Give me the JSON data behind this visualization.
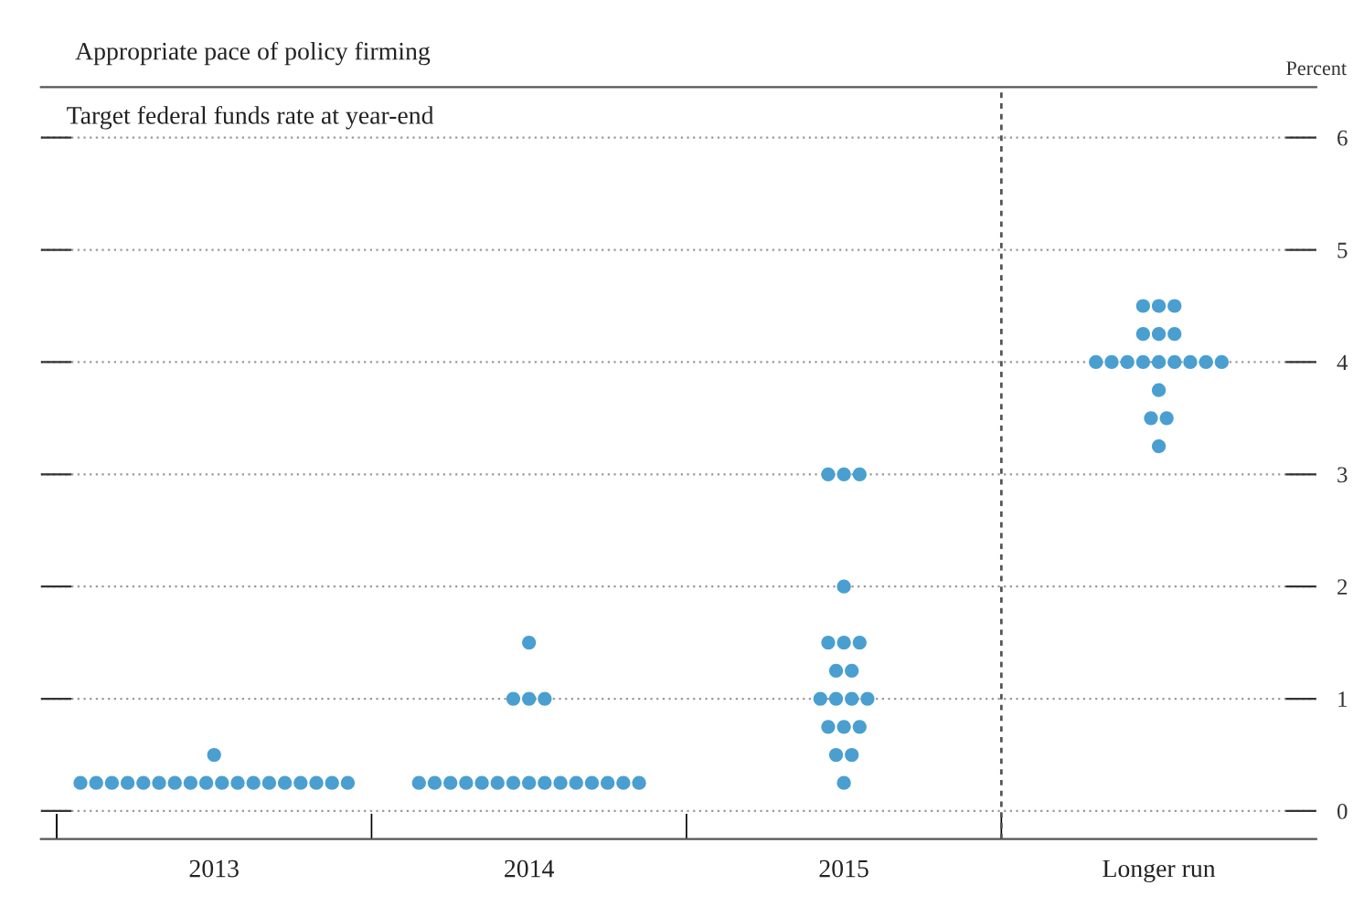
{
  "chart_data": {
    "type": "scatter",
    "title": "Appropriate pace of policy firming",
    "subtitle": "Target federal funds rate at year-end",
    "ylabel": "Percent",
    "categories": [
      "2013",
      "2014",
      "2015",
      "Longer run"
    ],
    "series": [
      {
        "color": "#4a9fd0",
        "values": [
          0.25,
          0.25,
          3.0,
          4.5
        ]
      },
      {
        "color": "#4a9fd0",
        "values": [
          0.25,
          0.25,
          3.0,
          4.5
        ]
      },
      {
        "color": "#4a9fd0",
        "values": [
          0.25,
          0.25,
          3.0,
          4.5
        ]
      },
      {
        "color": "#4a9fd0",
        "values": [
          0.25,
          0.25,
          2.0,
          4.25
        ]
      },
      {
        "color": "#4a9fd0",
        "values": [
          0.25,
          0.25,
          1.5,
          4.25
        ]
      },
      {
        "color": "#4a9fd0",
        "values": [
          0.25,
          0.25,
          1.5,
          4.25
        ]
      },
      {
        "color": "#4a9fd0",
        "values": [
          0.25,
          0.25,
          1.5,
          4.0
        ]
      },
      {
        "color": "#4a9fd0",
        "values": [
          0.25,
          0.25,
          1.25,
          4.0
        ]
      },
      {
        "color": "#4a9fd0",
        "values": [
          0.25,
          0.25,
          1.25,
          4.0
        ]
      },
      {
        "color": "#4a9fd0",
        "values": [
          0.25,
          0.25,
          1.0,
          4.0
        ]
      },
      {
        "color": "#4a9fd0",
        "values": [
          0.25,
          0.25,
          1.0,
          4.0
        ]
      },
      {
        "color": "#4a9fd0",
        "values": [
          0.25,
          0.25,
          1.0,
          4.0
        ]
      },
      {
        "color": "#4a9fd0",
        "values": [
          0.25,
          0.25,
          1.0,
          4.0
        ]
      },
      {
        "color": "#4a9fd0",
        "values": [
          0.25,
          0.25,
          0.75,
          4.0
        ]
      },
      {
        "color": "#4a9fd0",
        "values": [
          0.25,
          0.25,
          0.75,
          4.0
        ]
      },
      {
        "color": "#4a9fd0",
        "values": [
          0.25,
          1.0,
          0.75,
          3.75
        ]
      },
      {
        "color": "#4a9fd0",
        "values": [
          0.25,
          1.0,
          0.5,
          3.5
        ]
      },
      {
        "color": "#4a9fd0",
        "values": [
          0.25,
          1.0,
          0.5,
          3.5
        ]
      },
      {
        "color": "#4a9fd0",
        "values": [
          0.5,
          1.5,
          0.25,
          3.25
        ]
      }
    ],
    "ylim": [
      -0.25,
      6.45
    ],
    "yticks": [
      0,
      1,
      2,
      3,
      4,
      5,
      6
    ],
    "grid": "y",
    "marker": "circle"
  }
}
